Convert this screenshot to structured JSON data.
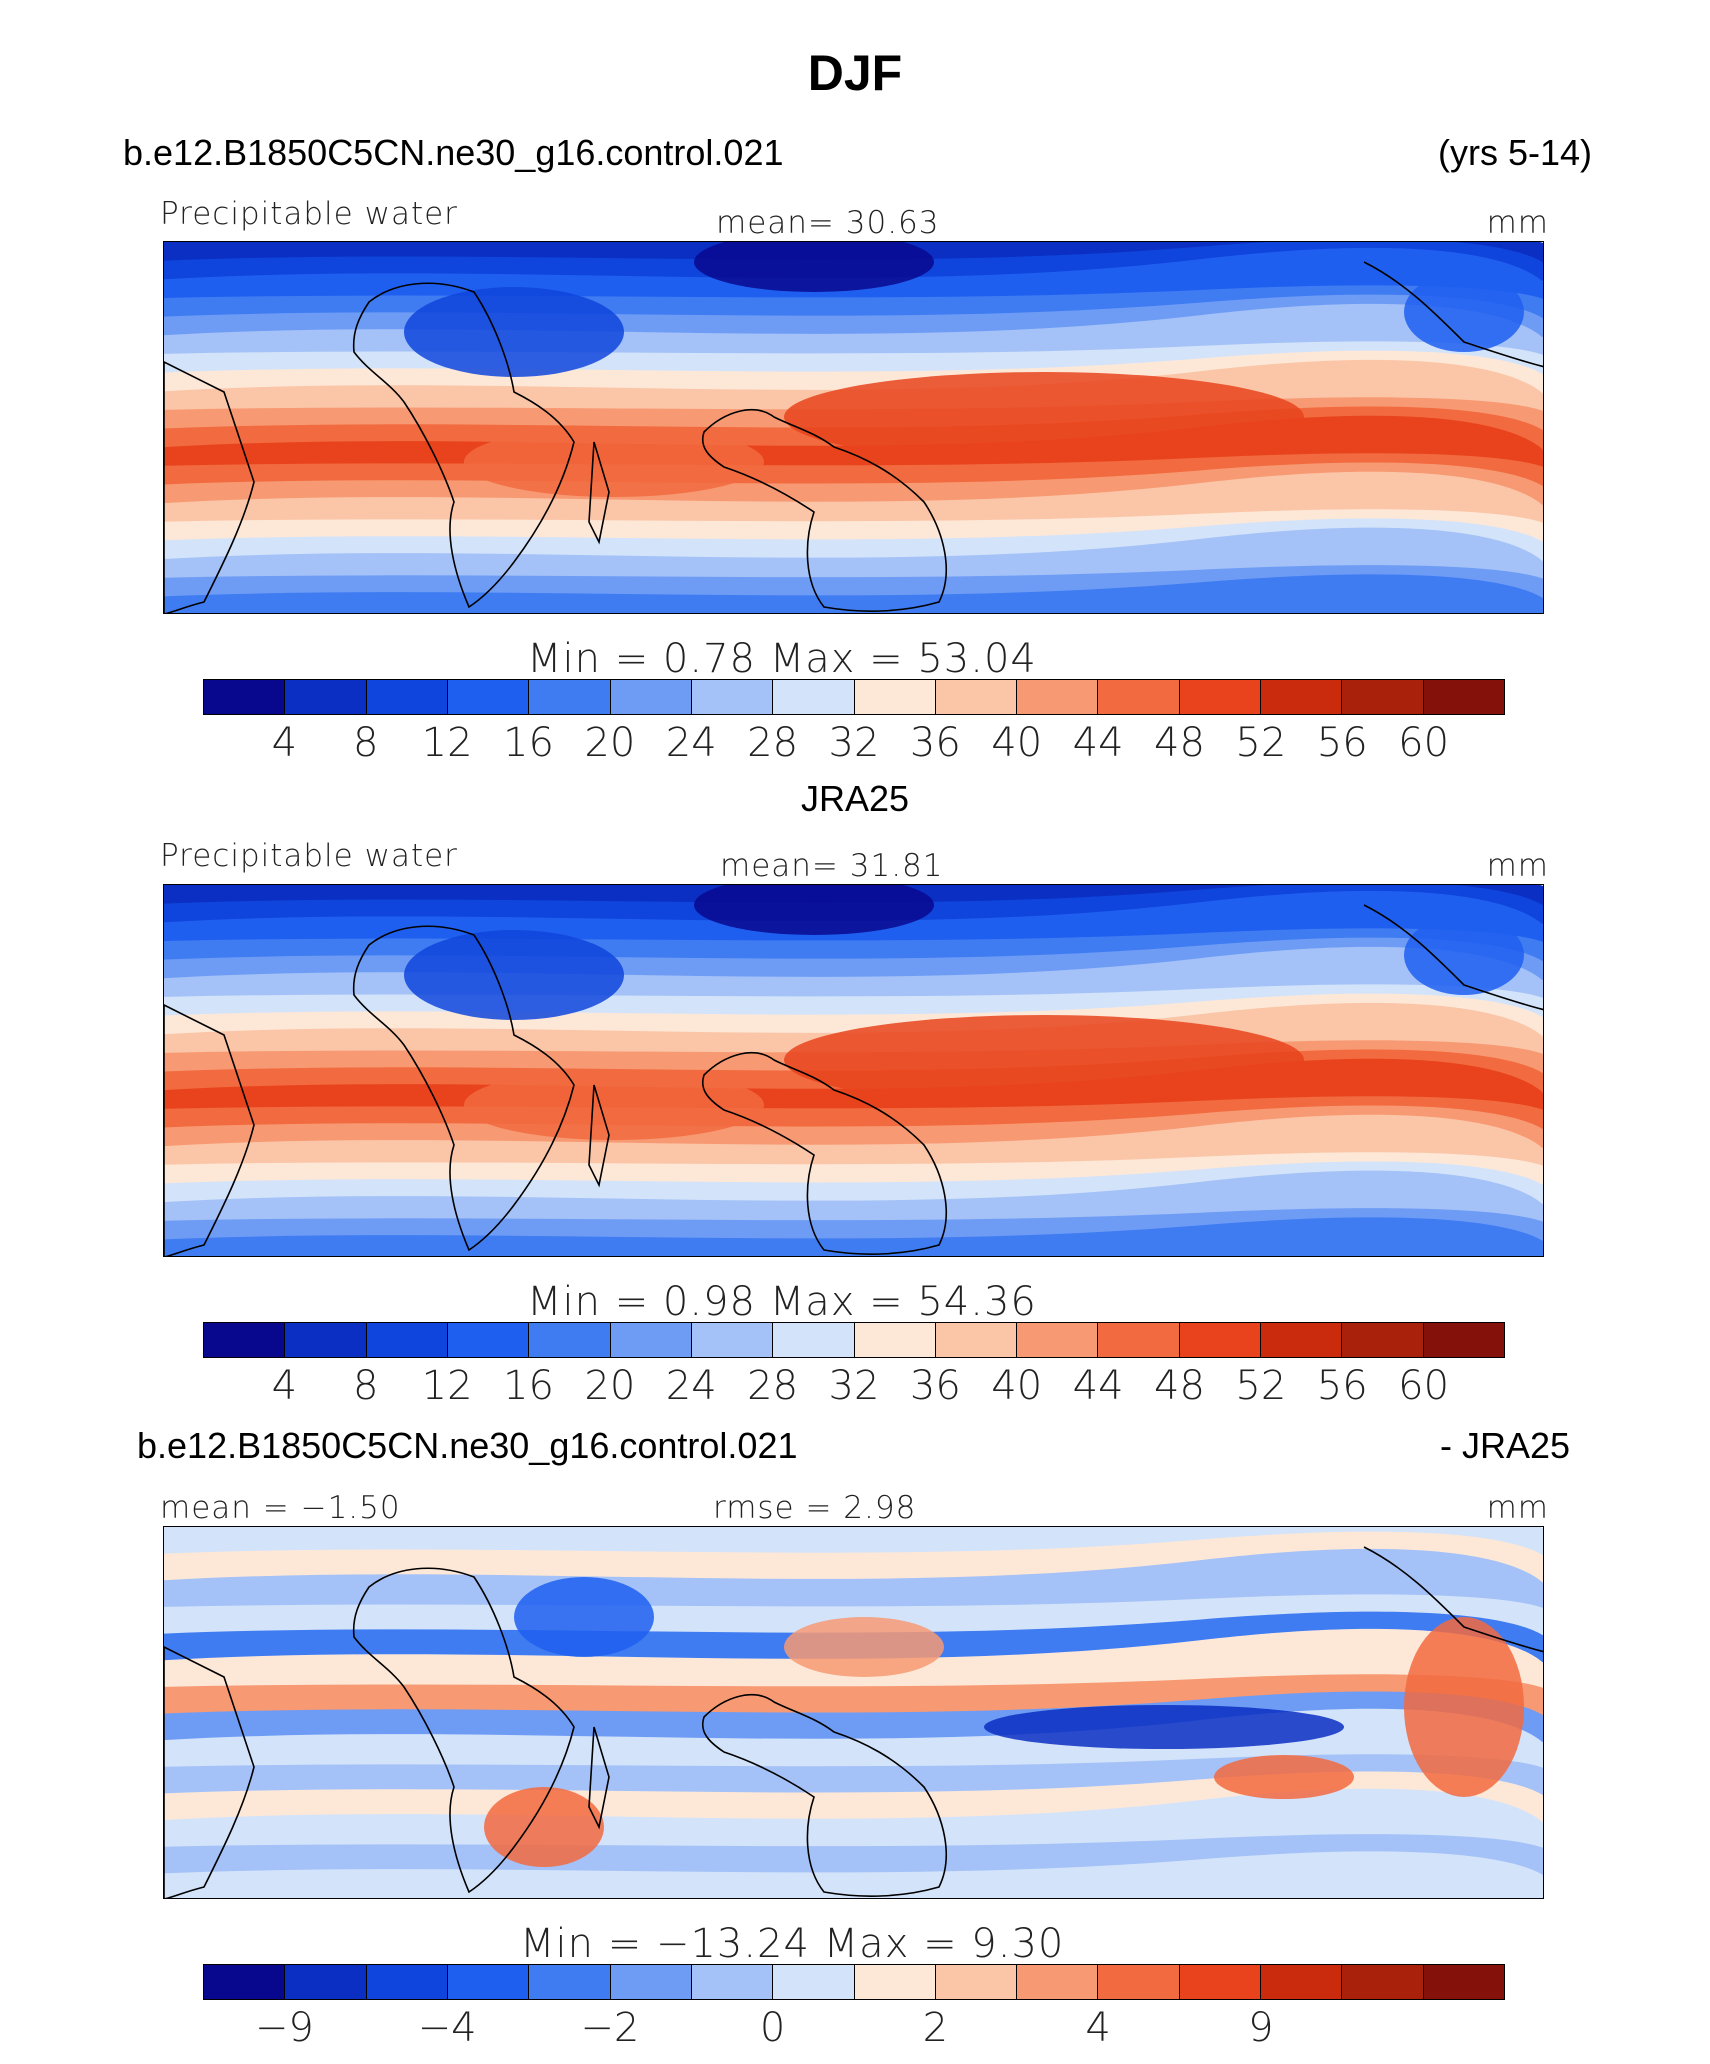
{
  "title": "DJF",
  "panels": [
    {
      "case": "b.e12.B1850C5CN.ne30_g16.control.021",
      "case_right": "(yrs 5-14)",
      "left_label": "Precipitable water",
      "center_label": "mean=   30.63",
      "right_label": "mm",
      "minmax": "Min  =     0.78  Max  =    53.04",
      "colorbar_ticks": [
        "4",
        "8",
        "12",
        "16",
        "20",
        "24",
        "28",
        "32",
        "36",
        "40",
        "44",
        "48",
        "52",
        "56",
        "60"
      ],
      "pattern": "field"
    },
    {
      "case": "JRA25",
      "case_right": "",
      "left_label": "Precipitable water",
      "center_label": "mean=   31.81",
      "right_label": "mm",
      "minmax": "Min  =     0.98  Max  =    54.36",
      "colorbar_ticks": [
        "4",
        "8",
        "12",
        "16",
        "20",
        "24",
        "28",
        "32",
        "36",
        "40",
        "44",
        "48",
        "52",
        "56",
        "60"
      ],
      "pattern": "field"
    },
    {
      "case": "b.e12.B1850C5CN.ne30_g16.control.021",
      "case_right": "- JRA25",
      "left_label": "mean =  −1.50",
      "center_label": "rmse =     2.98",
      "right_label": "mm",
      "minmax": "Min  =  −13.24  Max  =     9.30",
      "colorbar_ticks": [
        "−9",
        "−4",
        "−2",
        "0",
        "2",
        "4",
        "9"
      ],
      "pattern": "diff"
    }
  ],
  "colormap": [
    "#08088f",
    "#0a2fc2",
    "#0f45dc",
    "#1f5ff0",
    "#3f7cf2",
    "#6e9cf5",
    "#a4c2f7",
    "#d3e3fa",
    "#fde8d8",
    "#fbc6a8",
    "#f79a73",
    "#f26a3f",
    "#e8431c",
    "#c92b0c",
    "#a9210a",
    "#85120a"
  ]
}
